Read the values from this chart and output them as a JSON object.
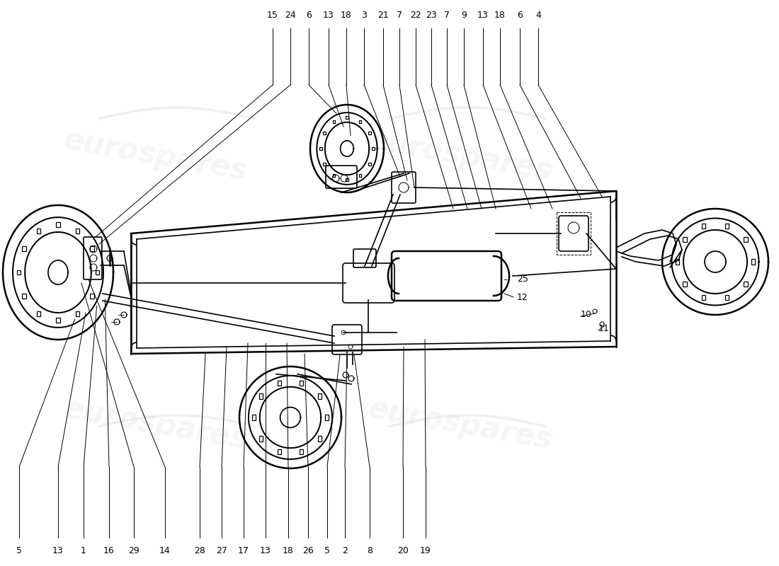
{
  "bg_color": "#ffffff",
  "lc": "#000000",
  "wm_color": "#cccccc",
  "lw": 1.2,
  "lw_thin": 0.7,
  "lw_thick": 1.8,
  "label_fs": 9,
  "top_labels": [
    [
      "15",
      0.35
    ],
    [
      "24",
      0.373
    ],
    [
      "6",
      0.397
    ],
    [
      "13",
      0.422
    ],
    [
      "18",
      0.445
    ],
    [
      "3",
      0.468
    ],
    [
      "21",
      0.492
    ],
    [
      "7",
      0.513
    ],
    [
      "22",
      0.534
    ],
    [
      "23",
      0.554
    ],
    [
      "7",
      0.574
    ],
    [
      "9",
      0.596
    ],
    [
      "13",
      0.62
    ],
    [
      "18",
      0.642
    ],
    [
      "6",
      0.668
    ],
    [
      "4",
      0.691
    ]
  ],
  "bottom_labels": [
    [
      "5",
      0.025
    ],
    [
      "13",
      0.075
    ],
    [
      "1",
      0.108
    ],
    [
      "16",
      0.14
    ],
    [
      "29",
      0.172
    ],
    [
      "14",
      0.212
    ],
    [
      "28",
      0.257
    ],
    [
      "27",
      0.285
    ],
    [
      "17",
      0.313
    ],
    [
      "13",
      0.341
    ],
    [
      "18",
      0.37
    ],
    [
      "26",
      0.396
    ],
    [
      "5",
      0.42
    ],
    [
      "2",
      0.443
    ],
    [
      "8",
      0.475
    ],
    [
      "20",
      0.518
    ],
    [
      "19",
      0.547
    ]
  ]
}
